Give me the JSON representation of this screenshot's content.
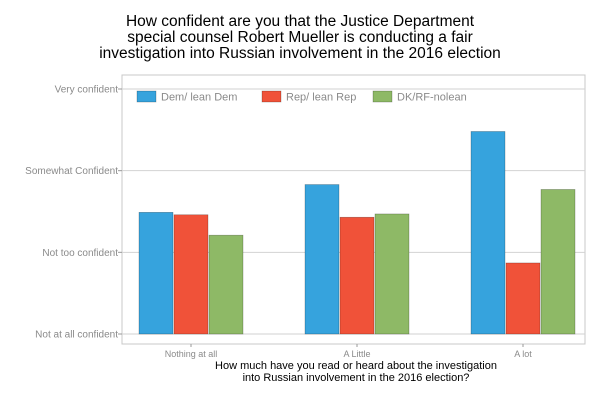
{
  "chart_data": {
    "type": "bar",
    "title": "How confident are you that the Justice Department special counsel Robert Mueller is conducting a fair investigation into Russian involvement in the 2016 election",
    "title_lines": [
      "How confident are you that the Justice Department",
      "special counsel Robert Mueller is conducting a fair",
      "investigation into Russian involvement in the 2016 election"
    ],
    "xlabel": "How much have you read or heard about the investigation into Russian involvement in the 2016 election?",
    "xlabel_lines": [
      "How much have you read or heard about the investigation",
      "into Russian involvement in the 2016 election?"
    ],
    "ylabel": "",
    "categories": [
      "Nothing at all",
      "A Little",
      "A lot"
    ],
    "y_tick_labels": [
      "Not at all confident",
      "Not too confident",
      "Somewhat Confident",
      "Very confident"
    ],
    "y_tick_values": [
      1,
      2,
      3,
      4
    ],
    "ylim": [
      1,
      4
    ],
    "grid": true,
    "legend_position": "top-left",
    "series": [
      {
        "name": "Dem/ lean Dem",
        "color": "#36a3dd",
        "values": [
          2.49,
          2.83,
          3.48
        ]
      },
      {
        "name": "Rep/ lean Rep",
        "color": "#f05239",
        "values": [
          2.46,
          2.43,
          1.87
        ]
      },
      {
        "name": "DK/RF-nolean",
        "color": "#8eb966",
        "values": [
          2.21,
          2.47,
          2.77
        ]
      }
    ]
  }
}
